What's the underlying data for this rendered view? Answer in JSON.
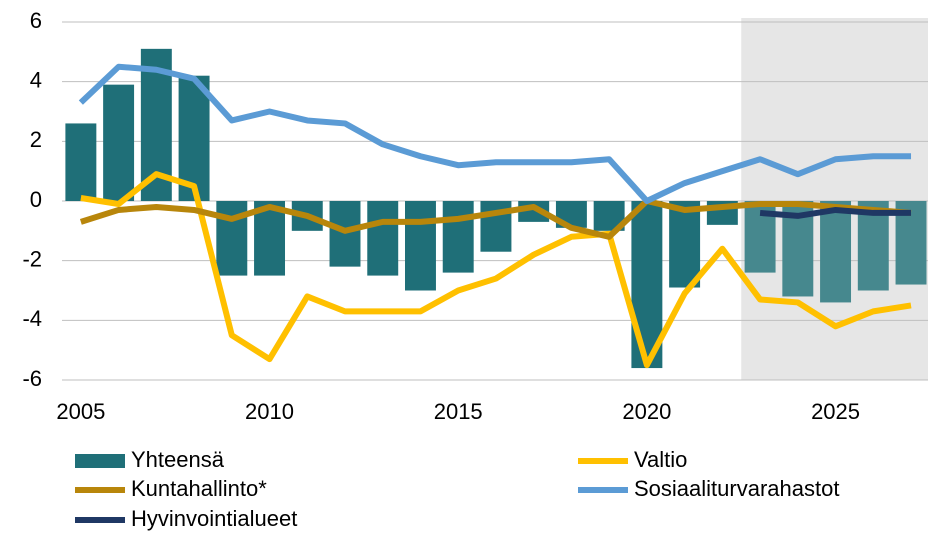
{
  "chart_data": {
    "type": "combo",
    "x": [
      2005,
      2006,
      2007,
      2008,
      2009,
      2010,
      2011,
      2012,
      2013,
      2014,
      2015,
      2016,
      2017,
      2018,
      2019,
      2020,
      2021,
      2022,
      2023,
      2024,
      2025,
      2026,
      2027
    ],
    "xlim": [
      2004.5,
      2027.45
    ],
    "xticks": [
      2005,
      2010,
      2015,
      2020,
      2025
    ],
    "ylim": [
      -6,
      6
    ],
    "yticks": [
      -6,
      -4,
      -2,
      0,
      2,
      4,
      6
    ],
    "grid": true,
    "shaded_x": [
      2022.5,
      2027.45
    ],
    "shade_color": "#e6e6e6",
    "legend": "bottom",
    "series": [
      {
        "name": "Yhteensä",
        "type": "bar",
        "color": "#1f6f78",
        "forecast_color": "#46888e",
        "values": [
          2.6,
          3.9,
          5.1,
          4.2,
          -2.5,
          -2.5,
          -1.0,
          -2.2,
          -2.5,
          -3.0,
          -2.4,
          -1.7,
          -0.7,
          -0.9,
          -1.0,
          -5.6,
          -2.9,
          -0.8,
          -2.4,
          -3.2,
          -3.4,
          -3.0,
          -2.8
        ]
      },
      {
        "name": "Valtio",
        "type": "line",
        "color": "#ffc000",
        "values": [
          0.1,
          -0.1,
          0.9,
          0.5,
          -4.5,
          -5.3,
          -3.2,
          -3.7,
          -3.7,
          -3.7,
          -3.0,
          -2.6,
          -1.8,
          -1.2,
          -1.1,
          -5.5,
          -3.1,
          -1.6,
          -3.3,
          -3.4,
          -4.2,
          -3.7,
          -3.5
        ]
      },
      {
        "name": "Kuntahallinto*",
        "type": "line",
        "color": "#b8860b",
        "values": [
          -0.7,
          -0.3,
          -0.2,
          -0.3,
          -0.6,
          -0.2,
          -0.5,
          -1.0,
          -0.7,
          -0.7,
          -0.6,
          -0.4,
          -0.2,
          -0.9,
          -1.2,
          0.0,
          -0.3,
          -0.2,
          -0.1,
          -0.1,
          -0.2,
          -0.3,
          -0.4
        ]
      },
      {
        "name": "Sosiaaliturvarahastot",
        "type": "line",
        "color": "#5b9bd5",
        "values": [
          3.3,
          4.5,
          4.4,
          4.1,
          2.7,
          3.0,
          2.7,
          2.6,
          1.9,
          1.5,
          1.2,
          1.3,
          1.3,
          1.3,
          1.4,
          0.0,
          0.6,
          1.0,
          1.4,
          0.9,
          1.4,
          1.5,
          1.5
        ]
      },
      {
        "name": "Hyvinvointialueet",
        "type": "line",
        "color": "#1f3864",
        "values": [
          null,
          null,
          null,
          null,
          null,
          null,
          null,
          null,
          null,
          null,
          null,
          null,
          null,
          null,
          null,
          null,
          null,
          null,
          -0.4,
          -0.5,
          -0.3,
          -0.4,
          -0.4
        ]
      }
    ]
  }
}
